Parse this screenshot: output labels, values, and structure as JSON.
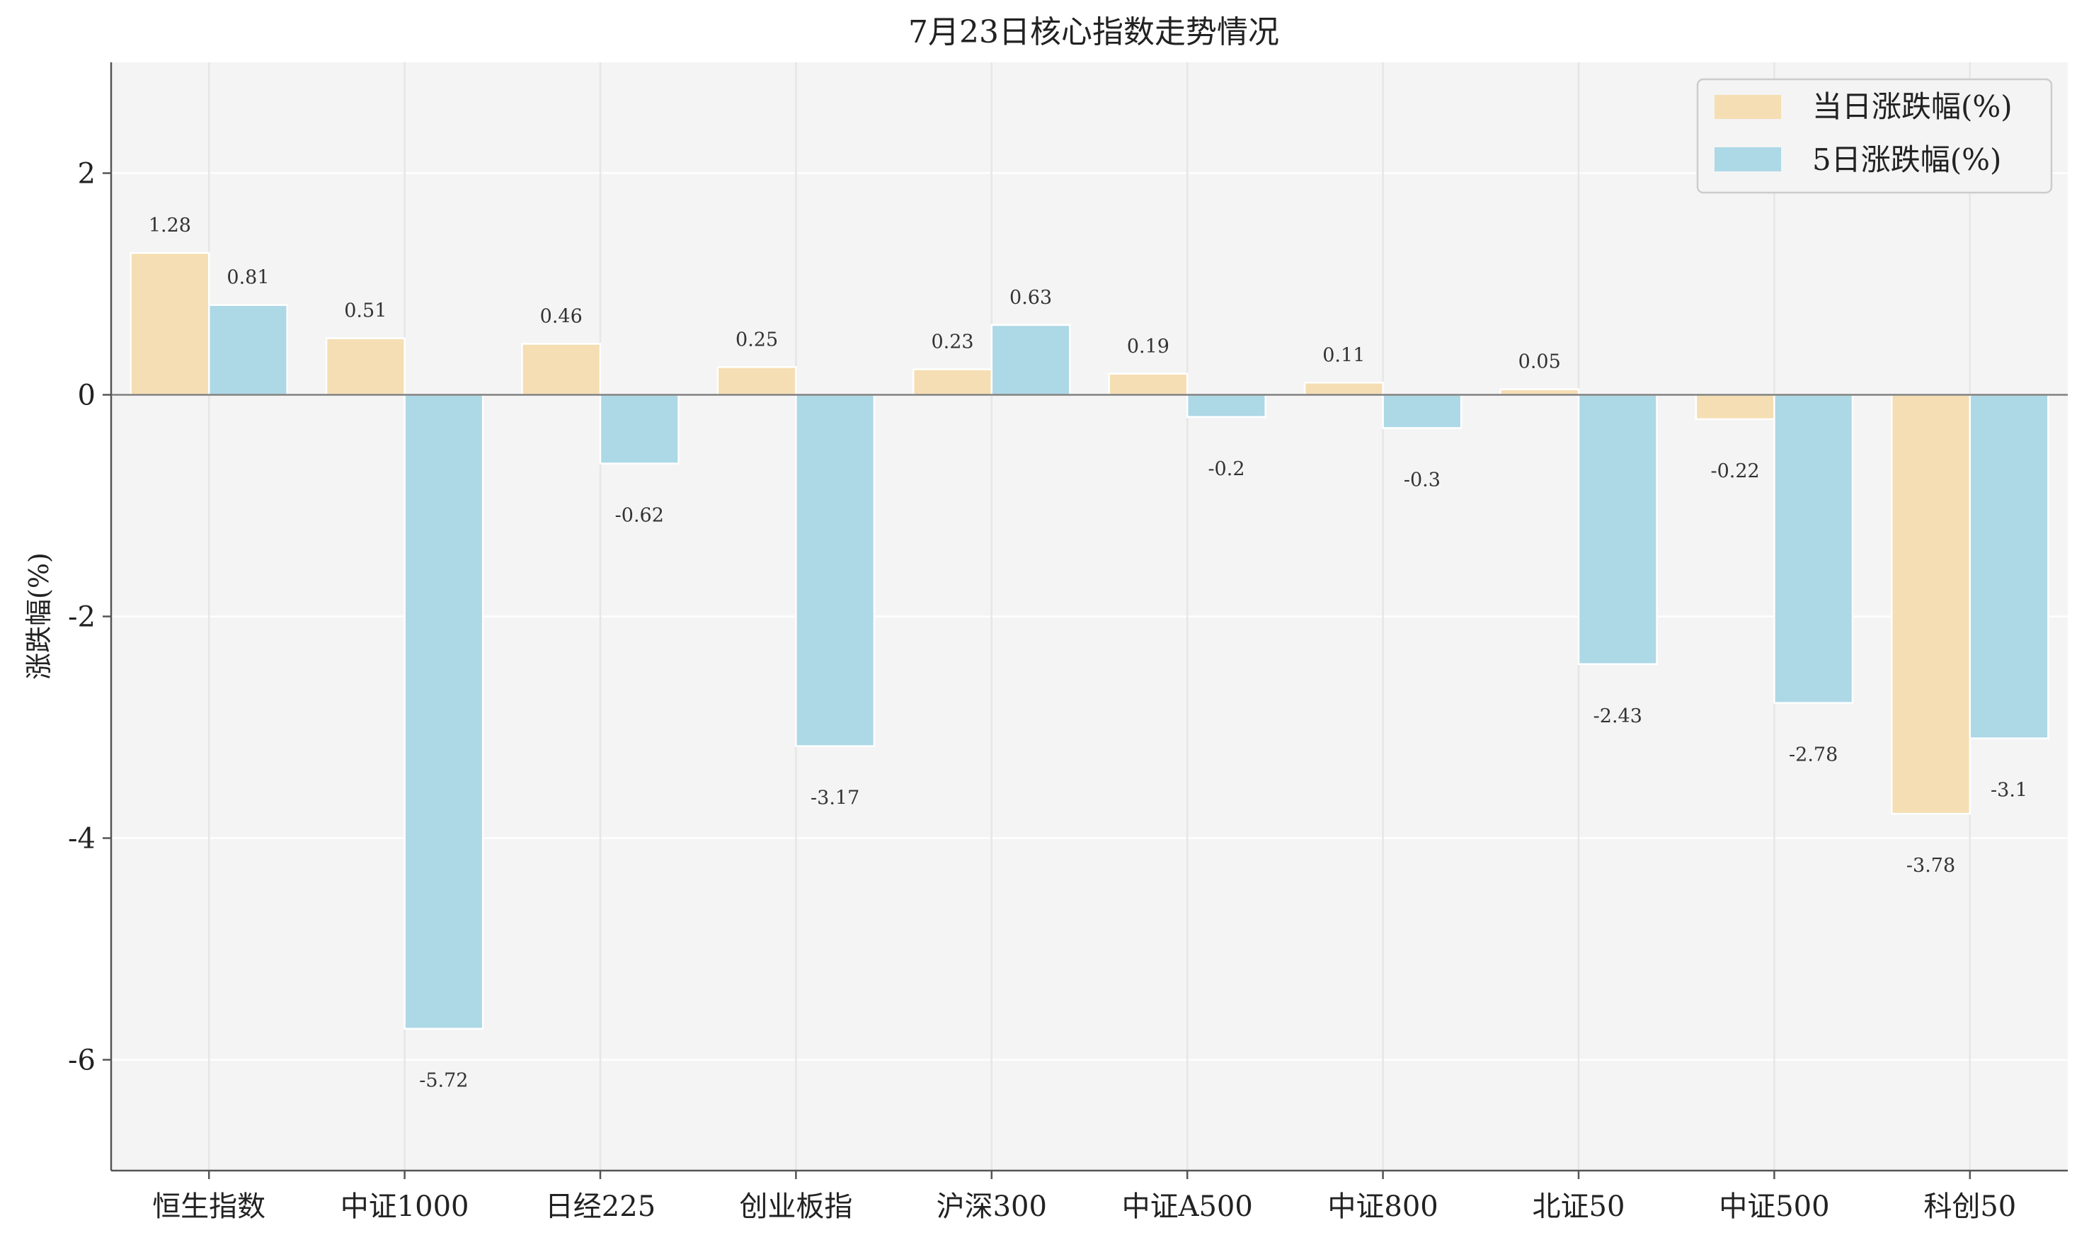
{
  "chart_data": {
    "type": "bar",
    "title": "7月23日核心指数走势情况",
    "xlabel": "",
    "ylabel": "涨跌幅(%)",
    "ylim": [
      -7,
      3
    ],
    "yticks": [
      2,
      0,
      -2,
      -4,
      -6
    ],
    "grid": true,
    "legend": "top-right",
    "categories": [
      "恒生指数",
      "中证1000",
      "日经225",
      "创业板指",
      "沪深300",
      "中证A500",
      "中证800",
      "北证50",
      "中证500",
      "科创50"
    ],
    "series": [
      {
        "name": "当日涨跌幅(%)",
        "color": "#f5deb3",
        "values": [
          1.28,
          0.51,
          0.46,
          0.25,
          0.23,
          0.19,
          0.11,
          0.05,
          -0.22,
          -3.78
        ]
      },
      {
        "name": "5日涨跌幅(%)",
        "color": "#add8e6",
        "values": [
          0.81,
          -5.72,
          -0.62,
          -3.17,
          0.63,
          -0.2,
          -0.3,
          -2.43,
          -2.78,
          -3.1
        ]
      }
    ]
  }
}
